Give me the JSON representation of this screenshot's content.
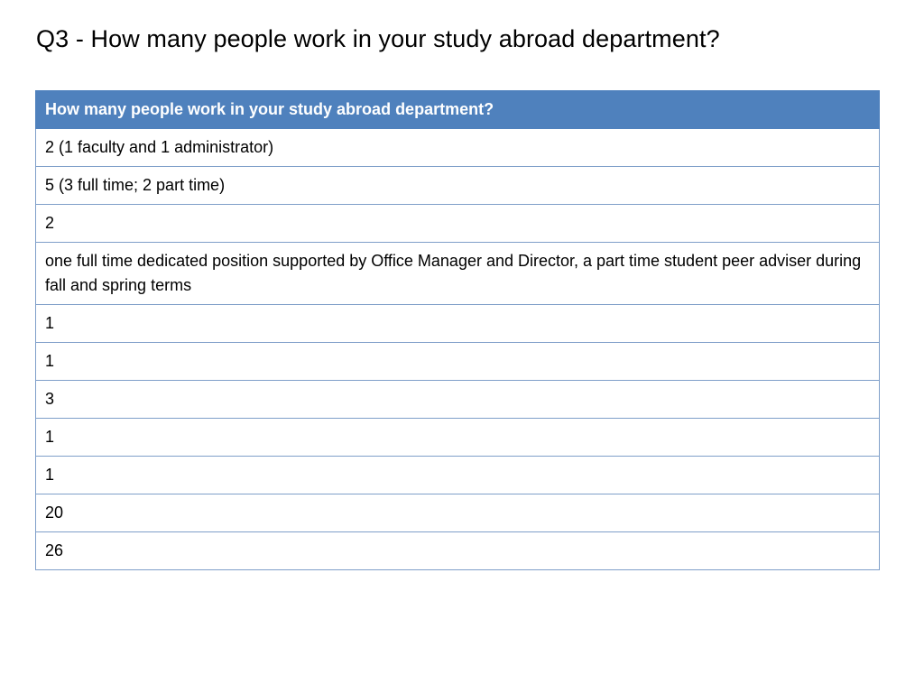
{
  "slide": {
    "title": "Q3 - How many people work in your study abroad department?"
  },
  "table": {
    "header": "How many people work in your study abroad department?",
    "rows": [
      "2 (1 faculty and 1 administrator)",
      "5 (3 full time; 2 part time)",
      "2",
      "one full time dedicated position supported by Office Manager and Director,  a part time student peer adviser during fall and spring terms",
      "1",
      "1",
      "3",
      "1",
      "1",
      "20",
      "26"
    ],
    "colors": {
      "header_bg": "#4f81bd",
      "border": "#7f9fc9"
    }
  }
}
